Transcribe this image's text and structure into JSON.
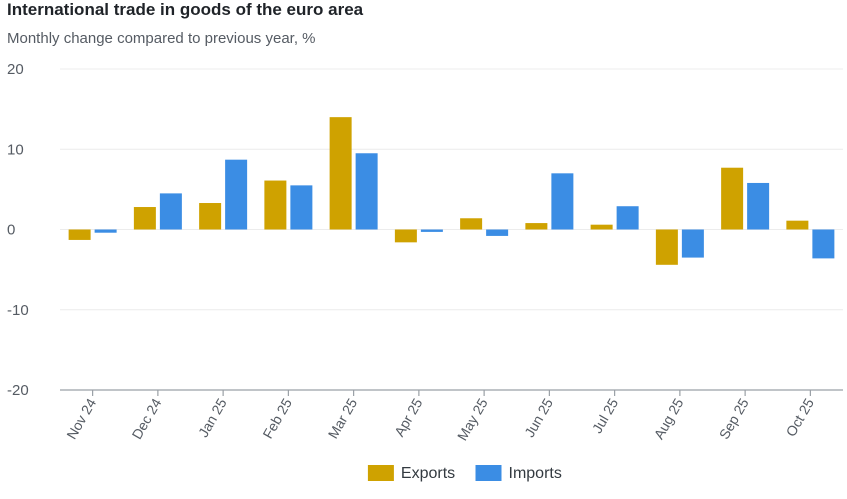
{
  "chart_data": {
    "type": "bar",
    "title": "International trade in goods of the euro area",
    "subtitle": "Monthly change compared to previous year, %",
    "categories": [
      "Nov 24",
      "Dec 24",
      "Jan 25",
      "Feb 25",
      "Mar 25",
      "Apr 25",
      "May 25",
      "Jun 25",
      "Jul 25",
      "Aug 25",
      "Sep 25",
      "Oct 25"
    ],
    "series": [
      {
        "name": "Exports",
        "color": "#cfa200",
        "values": [
          -1.3,
          2.8,
          3.3,
          6.1,
          14.0,
          -1.6,
          1.4,
          0.8,
          0.6,
          -4.4,
          7.7,
          1.1
        ]
      },
      {
        "name": "Imports",
        "color": "#3b8de4",
        "values": [
          -0.4,
          4.5,
          8.7,
          5.5,
          9.5,
          -0.3,
          -0.8,
          7.0,
          2.9,
          -3.5,
          5.8,
          -3.6
        ]
      }
    ],
    "ylim": [
      -20,
      20
    ],
    "yticks": [
      -20,
      -10,
      0,
      10,
      20
    ],
    "grid": true,
    "legend": "bottom-center",
    "xlabel": "",
    "ylabel": ""
  }
}
